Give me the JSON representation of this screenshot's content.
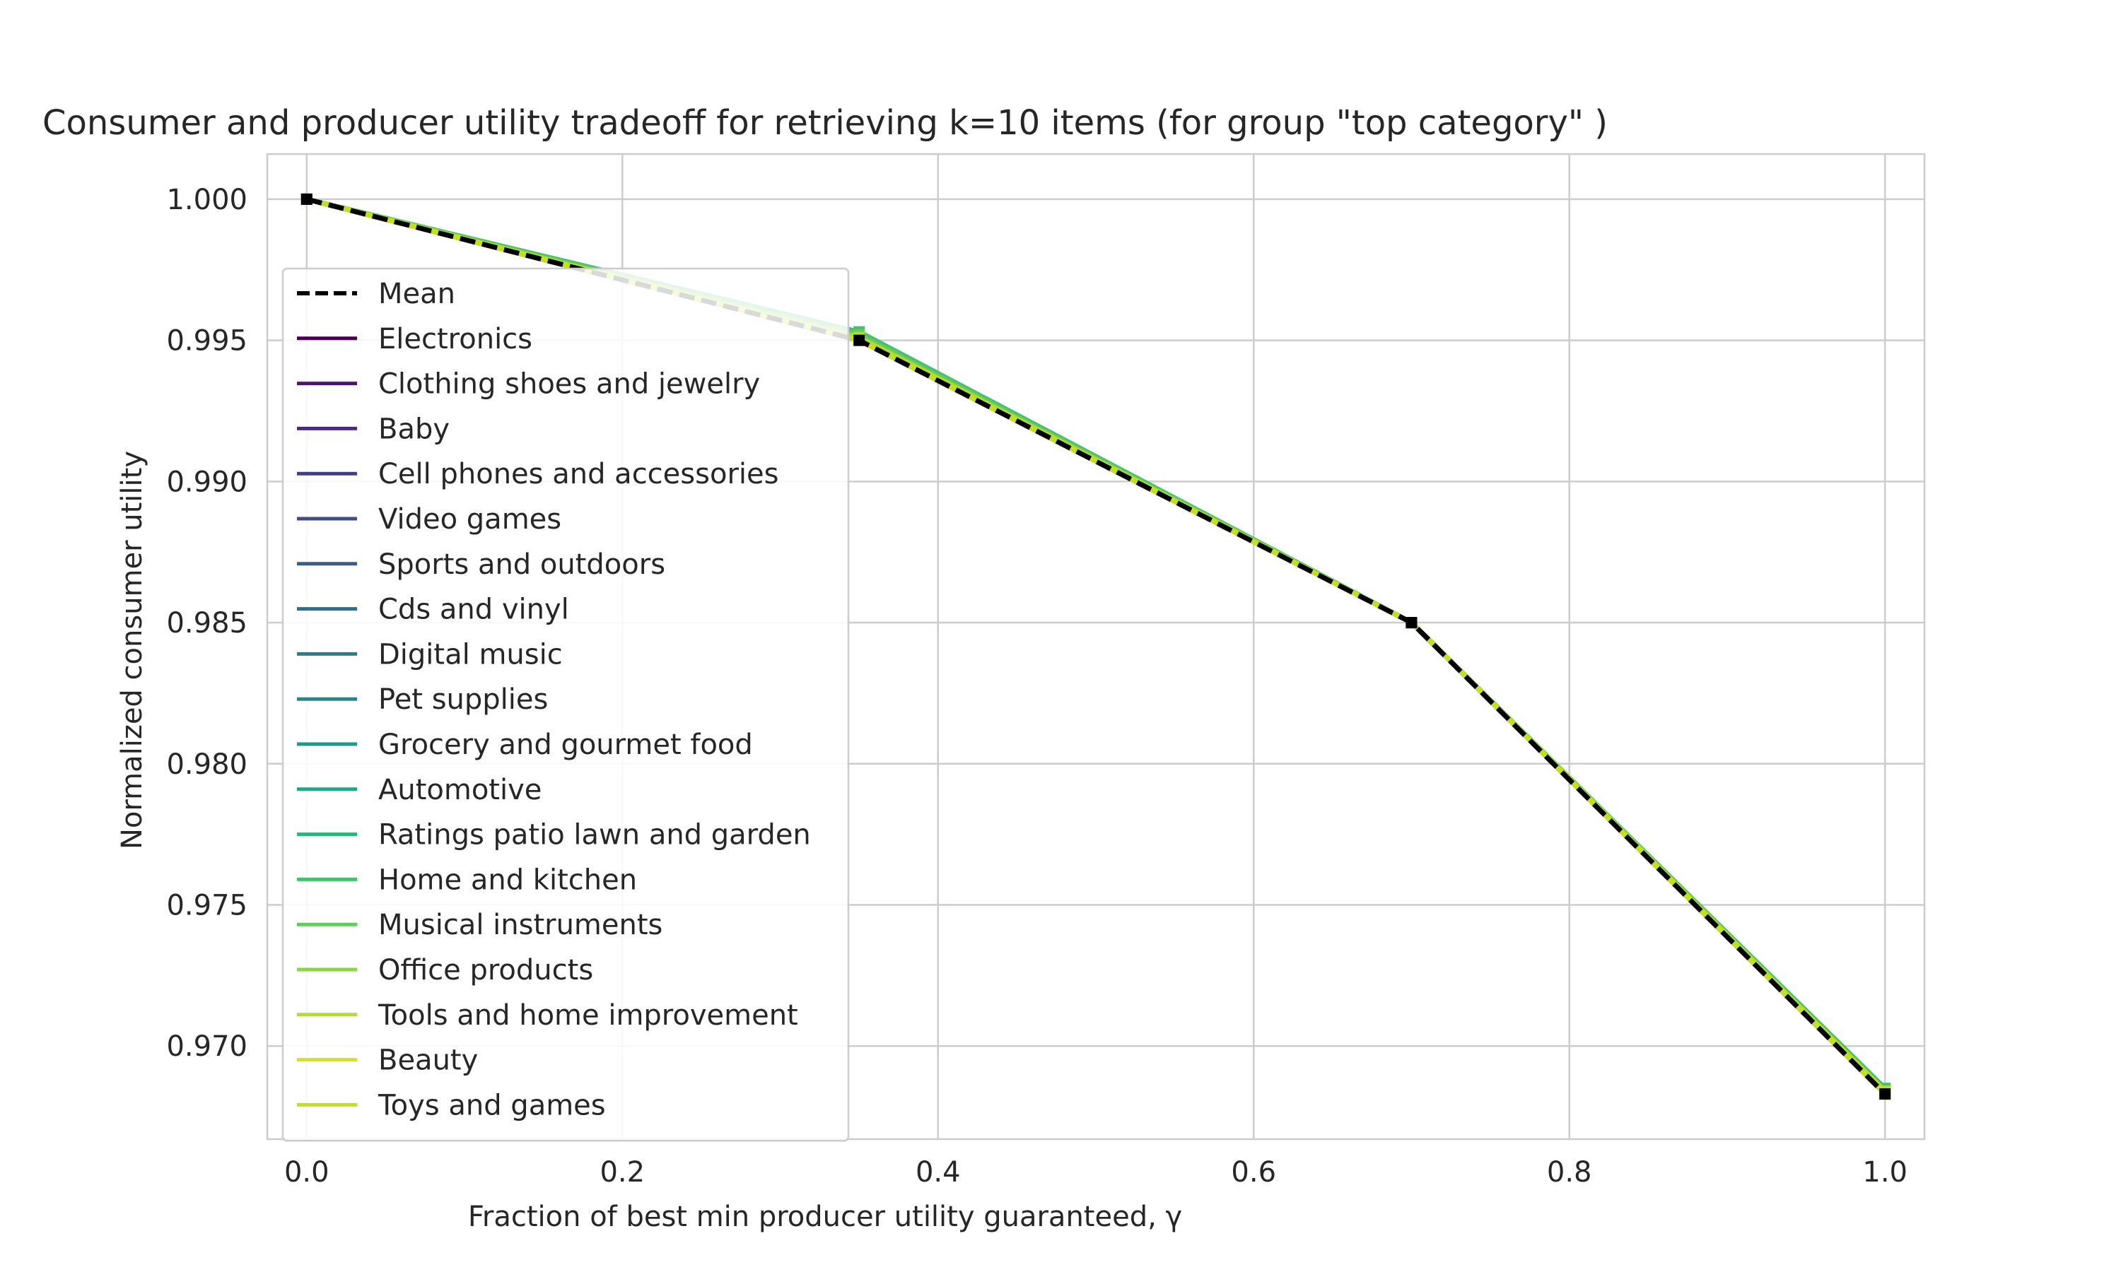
{
  "chart_data": {
    "type": "line",
    "title": "Consumer and producer utility tradeoff for retrieving k=10 items (for group \"top category\" )",
    "xlabel": "Fraction of best min producer utility guaranteed, γ",
    "ylabel": "Normalized consumer utility",
    "xlim": [
      -0.025,
      1.025
    ],
    "ylim": [
      0.9667,
      1.0016
    ],
    "xticks": [
      0.0,
      0.2,
      0.4,
      0.6,
      0.8,
      1.0
    ],
    "xtick_labels": [
      "0.0",
      "0.2",
      "0.4",
      "0.6",
      "0.8",
      "1.0"
    ],
    "yticks": [
      0.97,
      0.975,
      0.98,
      0.985,
      0.99,
      0.995,
      1.0
    ],
    "ytick_labels": [
      "0.970",
      "0.975",
      "0.980",
      "0.985",
      "0.990",
      "0.995",
      "1.000"
    ],
    "grid": true,
    "legend_position": "upper-left",
    "x": [
      0.0,
      0.35,
      0.7,
      1.0
    ],
    "mean": {
      "name": "Mean",
      "color": "#000000",
      "style": "dashed",
      "marker": "square",
      "values": [
        1.0,
        0.995,
        0.985,
        0.9683
      ]
    },
    "series": [
      {
        "name": "Electronics",
        "color": "#440154",
        "values": [
          1.0,
          0.9951,
          0.985,
          0.9684
        ]
      },
      {
        "name": "Clothing shoes and jewelry",
        "color": "#481769",
        "values": [
          1.0,
          0.9951,
          0.985,
          0.9684
        ]
      },
      {
        "name": "Baby",
        "color": "#472a7a",
        "values": [
          1.0,
          0.9951,
          0.985,
          0.9684
        ]
      },
      {
        "name": "Cell phones and accessories",
        "color": "#433d84",
        "values": [
          1.0,
          0.9951,
          0.985,
          0.9684
        ]
      },
      {
        "name": "Video games",
        "color": "#3d4e8a",
        "values": [
          1.0,
          0.9951,
          0.985,
          0.9684
        ]
      },
      {
        "name": "Sports and outdoors",
        "color": "#355e8d",
        "values": [
          1.0,
          0.9951,
          0.985,
          0.9684
        ]
      },
      {
        "name": "Cds and vinyl",
        "color": "#2e6d8e",
        "values": [
          1.0,
          0.9951,
          0.985,
          0.9684
        ]
      },
      {
        "name": "Digital music",
        "color": "#297b8e",
        "values": [
          1.0,
          0.9951,
          0.985,
          0.9684
        ]
      },
      {
        "name": "Pet supplies",
        "color": "#23898e",
        "values": [
          1.0,
          0.9951,
          0.985,
          0.9684
        ]
      },
      {
        "name": "Grocery and gourmet food",
        "color": "#1f978b",
        "values": [
          1.0,
          0.9951,
          0.985,
          0.9684
        ]
      },
      {
        "name": "Automotive",
        "color": "#21a585",
        "values": [
          1.0,
          0.9951,
          0.985,
          0.9684
        ]
      },
      {
        "name": "Ratings patio lawn and garden",
        "color": "#2eb37c",
        "values": [
          1.0,
          0.9951,
          0.985,
          0.9684
        ]
      },
      {
        "name": "Home and kitchen",
        "color": "#46c06f",
        "values": [
          1.0,
          0.9953,
          0.985,
          0.9685
        ]
      },
      {
        "name": "Musical instruments",
        "color": "#65cb5e",
        "values": [
          1.0,
          0.9952,
          0.985,
          0.9684
        ]
      },
      {
        "name": "Office products",
        "color": "#89d548",
        "values": [
          1.0,
          0.9951,
          0.985,
          0.9684
        ]
      },
      {
        "name": "Tools and home improvement",
        "color": "#b0dd2f",
        "values": [
          1.0,
          0.9951,
          0.985,
          0.9684
        ]
      },
      {
        "name": "Beauty",
        "color": "#d8e219",
        "values": [
          1.0,
          0.995,
          0.985,
          0.9683
        ]
      },
      {
        "name": "Toys and games",
        "color": "#c2df23",
        "values": [
          1.0,
          0.995,
          0.985,
          0.9683
        ]
      }
    ]
  }
}
